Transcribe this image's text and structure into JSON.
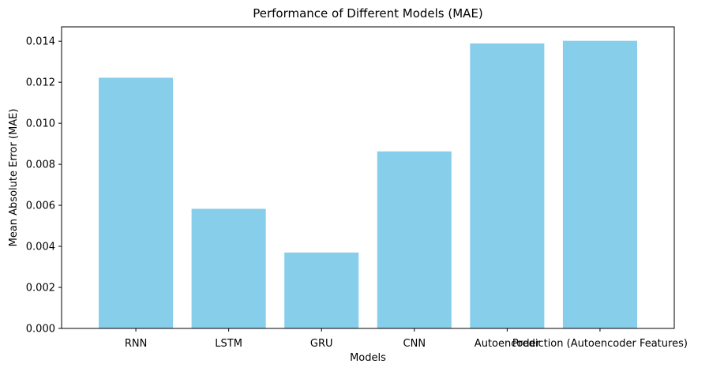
{
  "chart_data": {
    "type": "bar",
    "title": "Performance of Different Models (MAE)",
    "xlabel": "Models",
    "ylabel": "Mean Absolute Error (MAE)",
    "categories": [
      "RNN",
      "LSTM",
      "GRU",
      "CNN",
      "Autoencoder",
      "Prediction (Autoencoder Features)"
    ],
    "values": [
      0.01222,
      0.00583,
      0.0037,
      0.00863,
      0.01389,
      0.01402
    ],
    "ylim": [
      0,
      0.0147
    ],
    "yticks": [
      0,
      0.002,
      0.004,
      0.006,
      0.008,
      0.01,
      0.012,
      0.014
    ],
    "ytick_labels": [
      "0.000",
      "0.002",
      "0.004",
      "0.006",
      "0.008",
      "0.010",
      "0.012",
      "0.014"
    ],
    "bar_color": "#87ceeb",
    "grid": false,
    "legend": null
  }
}
